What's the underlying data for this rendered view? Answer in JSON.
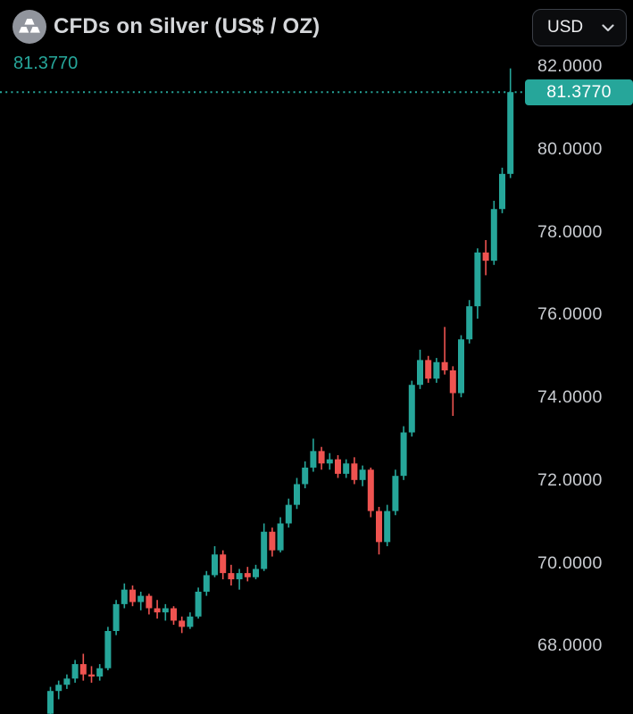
{
  "header": {
    "title": "CFDs on Silver (US$ / OZ)",
    "price": "81.3770",
    "symbol_icon": "silver-ingots-icon",
    "currency_selector": {
      "value": "USD",
      "chevron_icon": "chevron-down-icon"
    }
  },
  "price_scale": {
    "ticks": [
      "82.0000",
      "80.0000",
      "78.0000",
      "76.0000",
      "74.0000",
      "72.0000",
      "70.0000",
      "68.0000"
    ],
    "current_price_label": "81.3770"
  },
  "colors": {
    "background": "#000000",
    "up": "#26a69a",
    "down": "#ef5350",
    "accent": "#26a69a",
    "title_text": "#d5d7da",
    "scale_text": "#c9ccd1",
    "badge_text": "#ffffff"
  },
  "chart_data": {
    "type": "candlestick",
    "title": "CFDs on Silver (US$ / OZ)",
    "unit": "US$ / OZ",
    "currency": "USD",
    "last_price": 81.377,
    "y_ticks": [
      82,
      80,
      78,
      76,
      74,
      72,
      70,
      68
    ],
    "ylim_visible": [
      66.3,
      82.3
    ],
    "grid": false,
    "legend": "none",
    "current_price_line": {
      "style": "dotted",
      "price": 81.377
    },
    "candles_ohlc": [
      [
        66.35,
        67.0,
        66.05,
        66.9
      ],
      [
        66.9,
        67.15,
        66.7,
        67.05
      ],
      [
        67.05,
        67.3,
        66.95,
        67.2
      ],
      [
        67.2,
        67.65,
        67.1,
        67.55
      ],
      [
        67.55,
        67.8,
        67.15,
        67.3
      ],
      [
        67.3,
        67.5,
        67.1,
        67.25
      ],
      [
        67.25,
        67.55,
        67.15,
        67.45
      ],
      [
        67.45,
        68.45,
        67.4,
        68.35
      ],
      [
        68.35,
        69.1,
        68.25,
        69.0
      ],
      [
        69.0,
        69.5,
        68.9,
        69.35
      ],
      [
        69.35,
        69.45,
        68.95,
        69.05
      ],
      [
        69.05,
        69.3,
        68.85,
        69.2
      ],
      [
        69.2,
        69.25,
        68.75,
        68.9
      ],
      [
        68.9,
        69.1,
        68.65,
        68.8
      ],
      [
        68.8,
        69.0,
        68.6,
        68.9
      ],
      [
        68.9,
        68.95,
        68.5,
        68.6
      ],
      [
        68.6,
        68.7,
        68.3,
        68.45
      ],
      [
        68.45,
        68.8,
        68.4,
        68.7
      ],
      [
        68.7,
        69.4,
        68.65,
        69.3
      ],
      [
        69.3,
        69.8,
        69.2,
        69.7
      ],
      [
        69.7,
        70.4,
        69.65,
        70.2
      ],
      [
        70.2,
        70.3,
        69.6,
        69.75
      ],
      [
        69.75,
        69.95,
        69.45,
        69.6
      ],
      [
        69.6,
        69.85,
        69.35,
        69.75
      ],
      [
        69.75,
        69.9,
        69.55,
        69.65
      ],
      [
        69.65,
        69.95,
        69.6,
        69.85
      ],
      [
        69.85,
        70.95,
        69.8,
        70.75
      ],
      [
        70.75,
        70.85,
        70.15,
        70.3
      ],
      [
        70.3,
        71.1,
        70.25,
        70.95
      ],
      [
        70.95,
        71.55,
        70.85,
        71.4
      ],
      [
        71.4,
        72.05,
        71.3,
        71.9
      ],
      [
        71.9,
        72.45,
        71.8,
        72.3
      ],
      [
        72.3,
        73.0,
        72.2,
        72.7
      ],
      [
        72.7,
        72.8,
        72.25,
        72.4
      ],
      [
        72.4,
        72.65,
        72.25,
        72.5
      ],
      [
        72.5,
        72.6,
        72.05,
        72.15
      ],
      [
        72.15,
        72.5,
        72.05,
        72.4
      ],
      [
        72.4,
        72.55,
        71.9,
        72.0
      ],
      [
        72.0,
        72.35,
        71.85,
        72.25
      ],
      [
        72.25,
        72.3,
        71.1,
        71.25
      ],
      [
        71.25,
        71.35,
        70.2,
        70.5
      ],
      [
        70.5,
        71.4,
        70.4,
        71.25
      ],
      [
        71.25,
        72.25,
        71.15,
        72.1
      ],
      [
        72.1,
        73.3,
        72.0,
        73.15
      ],
      [
        73.15,
        74.4,
        73.05,
        74.3
      ],
      [
        74.3,
        75.15,
        74.2,
        74.9
      ],
      [
        74.9,
        75.0,
        74.35,
        74.45
      ],
      [
        74.45,
        74.95,
        74.35,
        74.85
      ],
      [
        74.85,
        75.7,
        74.55,
        74.65
      ],
      [
        74.65,
        74.75,
        73.55,
        74.1
      ],
      [
        74.1,
        75.5,
        74.0,
        75.4
      ],
      [
        75.4,
        76.35,
        75.3,
        76.2
      ],
      [
        76.2,
        77.6,
        75.9,
        77.5
      ],
      [
        77.5,
        77.8,
        76.95,
        77.3
      ],
      [
        77.3,
        78.75,
        77.2,
        78.55
      ],
      [
        78.55,
        79.55,
        78.45,
        79.4
      ],
      [
        79.4,
        81.95,
        79.3,
        81.377
      ]
    ]
  }
}
